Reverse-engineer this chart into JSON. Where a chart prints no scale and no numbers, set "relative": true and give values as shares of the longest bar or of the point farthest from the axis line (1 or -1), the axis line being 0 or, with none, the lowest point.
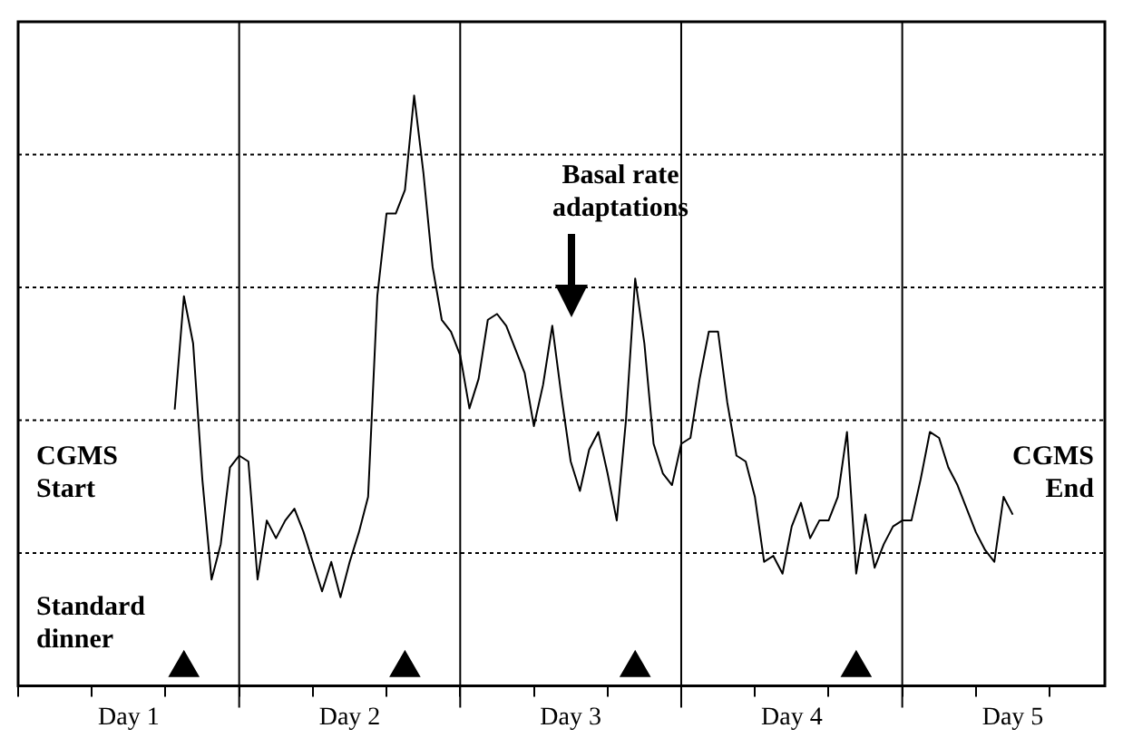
{
  "chart_data": {
    "type": "line",
    "relative": true,
    "legend": false,
    "grid": "y",
    "line_style": "solid",
    "categories": [
      null,
      null,
      null,
      null,
      null,
      null,
      null,
      null,
      null,
      null,
      null,
      null,
      "Day 1",
      null,
      null,
      null,
      null,
      null,
      null,
      null,
      null,
      null,
      null,
      null,
      null,
      null,
      null,
      null,
      null,
      null,
      null,
      null,
      null,
      null,
      null,
      null,
      "Day 2",
      null,
      null,
      null,
      null,
      null,
      null,
      null,
      null,
      null,
      null,
      null,
      null,
      null,
      null,
      null,
      null,
      null,
      null,
      null,
      null,
      null,
      null,
      null,
      "Day 3",
      null,
      null,
      null,
      null,
      null,
      null,
      null,
      null,
      null,
      null,
      null,
      null,
      null,
      null,
      null,
      null,
      null,
      null,
      null,
      null,
      null,
      null,
      null,
      "Day 4",
      null,
      null,
      null,
      null,
      null,
      null,
      null,
      null,
      null,
      null,
      null,
      null,
      null,
      null,
      null,
      null,
      null,
      null,
      null,
      null,
      null,
      null,
      null,
      "Day 5",
      null,
      null,
      null,
      null,
      null,
      null,
      null,
      null,
      null,
      null
    ],
    "annotations": [
      "CGMS Start",
      "CGMS End",
      "Standard dinner",
      "Basal rate adaptations"
    ],
    "series": [
      {
        "color": "#000000",
        "values": [
          null,
          null,
          null,
          null,
          null,
          null,
          null,
          null,
          null,
          null,
          null,
          null,
          null,
          null,
          null,
          null,
          null,
          0.468,
          0.66,
          0.58,
          0.35,
          0.18,
          0.24,
          0.37,
          0.39,
          0.38,
          0.18,
          0.28,
          0.25,
          0.28,
          0.3,
          0.26,
          0.21,
          0.16,
          0.21,
          0.15,
          0.21,
          0.26,
          0.32,
          0.66,
          0.8,
          0.8,
          0.84,
          1,
          0.87,
          0.71,
          0.62,
          0.6,
          0.56,
          0.47,
          0.52,
          0.62,
          0.63,
          0.61,
          0.57,
          0.53,
          0.44,
          0.51,
          0.61,
          0.49,
          0.38,
          0.33,
          0.4,
          0.43,
          0.36,
          0.28,
          0.45,
          0.69,
          0.58,
          0.41,
          0.36,
          0.34,
          0.41,
          0.42,
          0.52,
          0.6,
          0.6,
          0.48,
          0.39,
          0.38,
          0.32,
          0.21,
          0.22,
          0.19,
          0.27,
          0.31,
          0.25,
          0.28,
          0.28,
          0.32,
          0.43,
          0.19,
          0.29,
          0.2,
          0.24,
          0.27,
          0.28,
          0.28,
          0.35,
          0.43,
          0.42,
          0.37,
          0.34,
          0.3,
          0.26,
          0.23,
          0.21,
          0.32,
          0.29,
          null,
          null,
          null,
          null,
          null,
          null,
          null,
          null,
          null,
          null
        ]
      },
      {
        "type": "scatter",
        "color": "#000000",
        "marker": "triangle",
        "values": [
          null,
          null,
          null,
          null,
          null,
          null,
          null,
          null,
          null,
          null,
          null,
          null,
          null,
          null,
          null,
          null,
          null,
          null,
          0.03,
          null,
          null,
          null,
          null,
          null,
          null,
          null,
          null,
          null,
          null,
          null,
          null,
          null,
          null,
          null,
          null,
          null,
          null,
          null,
          null,
          null,
          null,
          null,
          0.03,
          null,
          null,
          null,
          null,
          null,
          null,
          null,
          null,
          null,
          null,
          null,
          null,
          null,
          null,
          null,
          null,
          null,
          null,
          null,
          null,
          null,
          null,
          null,
          null,
          0.03,
          null,
          null,
          null,
          null,
          null,
          null,
          null,
          null,
          null,
          null,
          null,
          null,
          null,
          null,
          null,
          null,
          null,
          null,
          null,
          null,
          null,
          null,
          null,
          0.03,
          null,
          null,
          null,
          null,
          null,
          null,
          null,
          null,
          null,
          null,
          null,
          null,
          null,
          null,
          null,
          null,
          null,
          null,
          null,
          null,
          null,
          null,
          null,
          null,
          null,
          null,
          null
        ]
      }
    ]
  }
}
